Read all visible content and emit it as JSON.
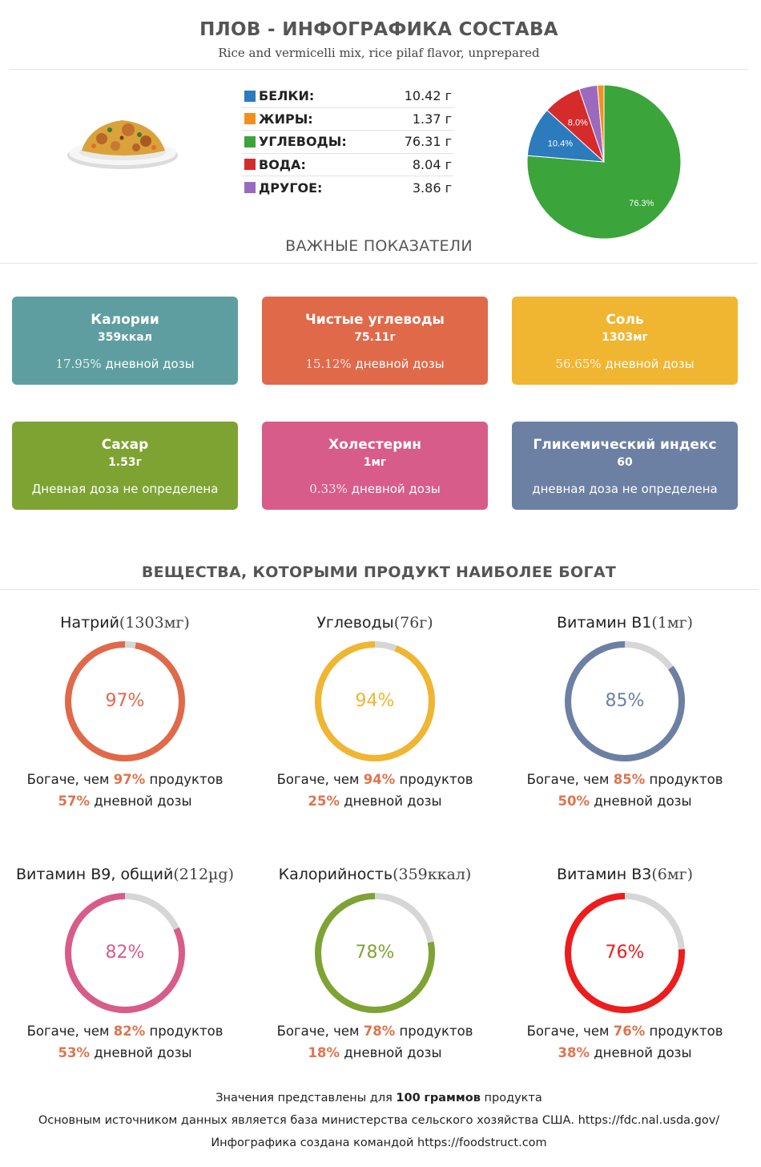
{
  "header": {
    "title": "ПЛОВ - ИНФОГРАФИКА СОСТАВА",
    "subtitle": "Rice and vermicelli mix, rice pilaf flavor, unprepared"
  },
  "macros": [
    {
      "label": "БЕЛКИ",
      "value": "10.42 г",
      "color": "#2b7bbd"
    },
    {
      "label": "ЖИРЫ",
      "value": "1.37 г",
      "color": "#f3901d"
    },
    {
      "label": "УГЛЕВОДЫ",
      "value": "76.31 г",
      "color": "#3ba43a"
    },
    {
      "label": "ВОДА",
      "value": "8.04 г",
      "color": "#d62b2b"
    },
    {
      "label": "ДРУГОЕ",
      "value": "3.86 г",
      "color": "#9b6abf"
    }
  ],
  "chart_data": {
    "type": "pie",
    "categories": [
      "Белки",
      "Жиры",
      "Углеводы",
      "Вода",
      "Другое"
    ],
    "values": [
      10.42,
      1.37,
      76.31,
      8.04,
      3.86
    ],
    "colors": [
      "#2b7bbd",
      "#f3901d",
      "#3ba43a",
      "#d62b2b",
      "#9b6abf"
    ],
    "slice_labels": [
      "10.4%",
      "",
      "76.3%",
      "8.0%",
      ""
    ]
  },
  "key_indicators": {
    "title": "ВАЖНЫЕ ПОКАЗАТЕЛИ",
    "cards": [
      {
        "title": "Калории",
        "value": "359ккал",
        "pct": "17.95%",
        "note": "дневной дозы",
        "color": "#5f9ea0"
      },
      {
        "title": "Чистые углеводы",
        "value": "75.11г",
        "pct": "15.12%",
        "note": "дневной дозы",
        "color": "#e0694a"
      },
      {
        "title": "Соль",
        "value": "1303мг",
        "pct": "56.65%",
        "note": "дневной дозы",
        "color": "#f0b531"
      },
      {
        "title": "Сахар",
        "value": "1.53г",
        "pct": "",
        "note": "Дневная доза не определена",
        "color": "#7ea333"
      },
      {
        "title": "Холестерин",
        "value": "1мг",
        "pct": "0.33%",
        "note": "дневной дозы",
        "color": "#d85c8a"
      },
      {
        "title": "Гликемический индекс",
        "value": "60",
        "pct": "",
        "note": "дневная доза не определена",
        "color": "#6c80a3"
      }
    ]
  },
  "rich_in": {
    "title": "ВЕЩЕСТВА, КОТОРЫМИ ПРОДУКТ НАИБОЛЕЕ БОГАТ",
    "richer_prefix": "Богаче, чем",
    "richer_suffix": "продуктов",
    "daily_suffix": "дневной дозы",
    "items": [
      {
        "name": "Натрий",
        "amount": "(1303мг)",
        "percent": 97,
        "percent_label": "97%",
        "daily": "57%",
        "color": "#e0694a"
      },
      {
        "name": "Углеводы",
        "amount": "(76г)",
        "percent": 94,
        "percent_label": "94%",
        "daily": "25%",
        "color": "#f0b531"
      },
      {
        "name": "Витамин B1",
        "amount": "(1мг)",
        "percent": 85,
        "percent_label": "85%",
        "daily": "50%",
        "color": "#6c80a3"
      },
      {
        "name": "Витамин B9, общий",
        "amount": "(212µg)",
        "percent": 82,
        "percent_label": "82%",
        "daily": "53%",
        "color": "#d85c8a"
      },
      {
        "name": "Калорийность",
        "amount": "(359ккал)",
        "percent": 78,
        "percent_label": "78%",
        "daily": "18%",
        "color": "#7ea333"
      },
      {
        "name": "Витамин B3",
        "amount": "(6мг)",
        "percent": 76,
        "percent_label": "76%",
        "daily": "38%",
        "color": "#ee1c1c"
      }
    ]
  },
  "footer": {
    "line1_prefix": "Значения представлены для",
    "line1_amount": "100",
    "line1_unit": "граммов",
    "line1_suffix": "продукта",
    "line2": "Основным источником данных является база министерства сельского хозяйства США. https://fdc.nal.usda.gov/",
    "line3": "Инфографика создана командой https://foodstruct.com"
  }
}
